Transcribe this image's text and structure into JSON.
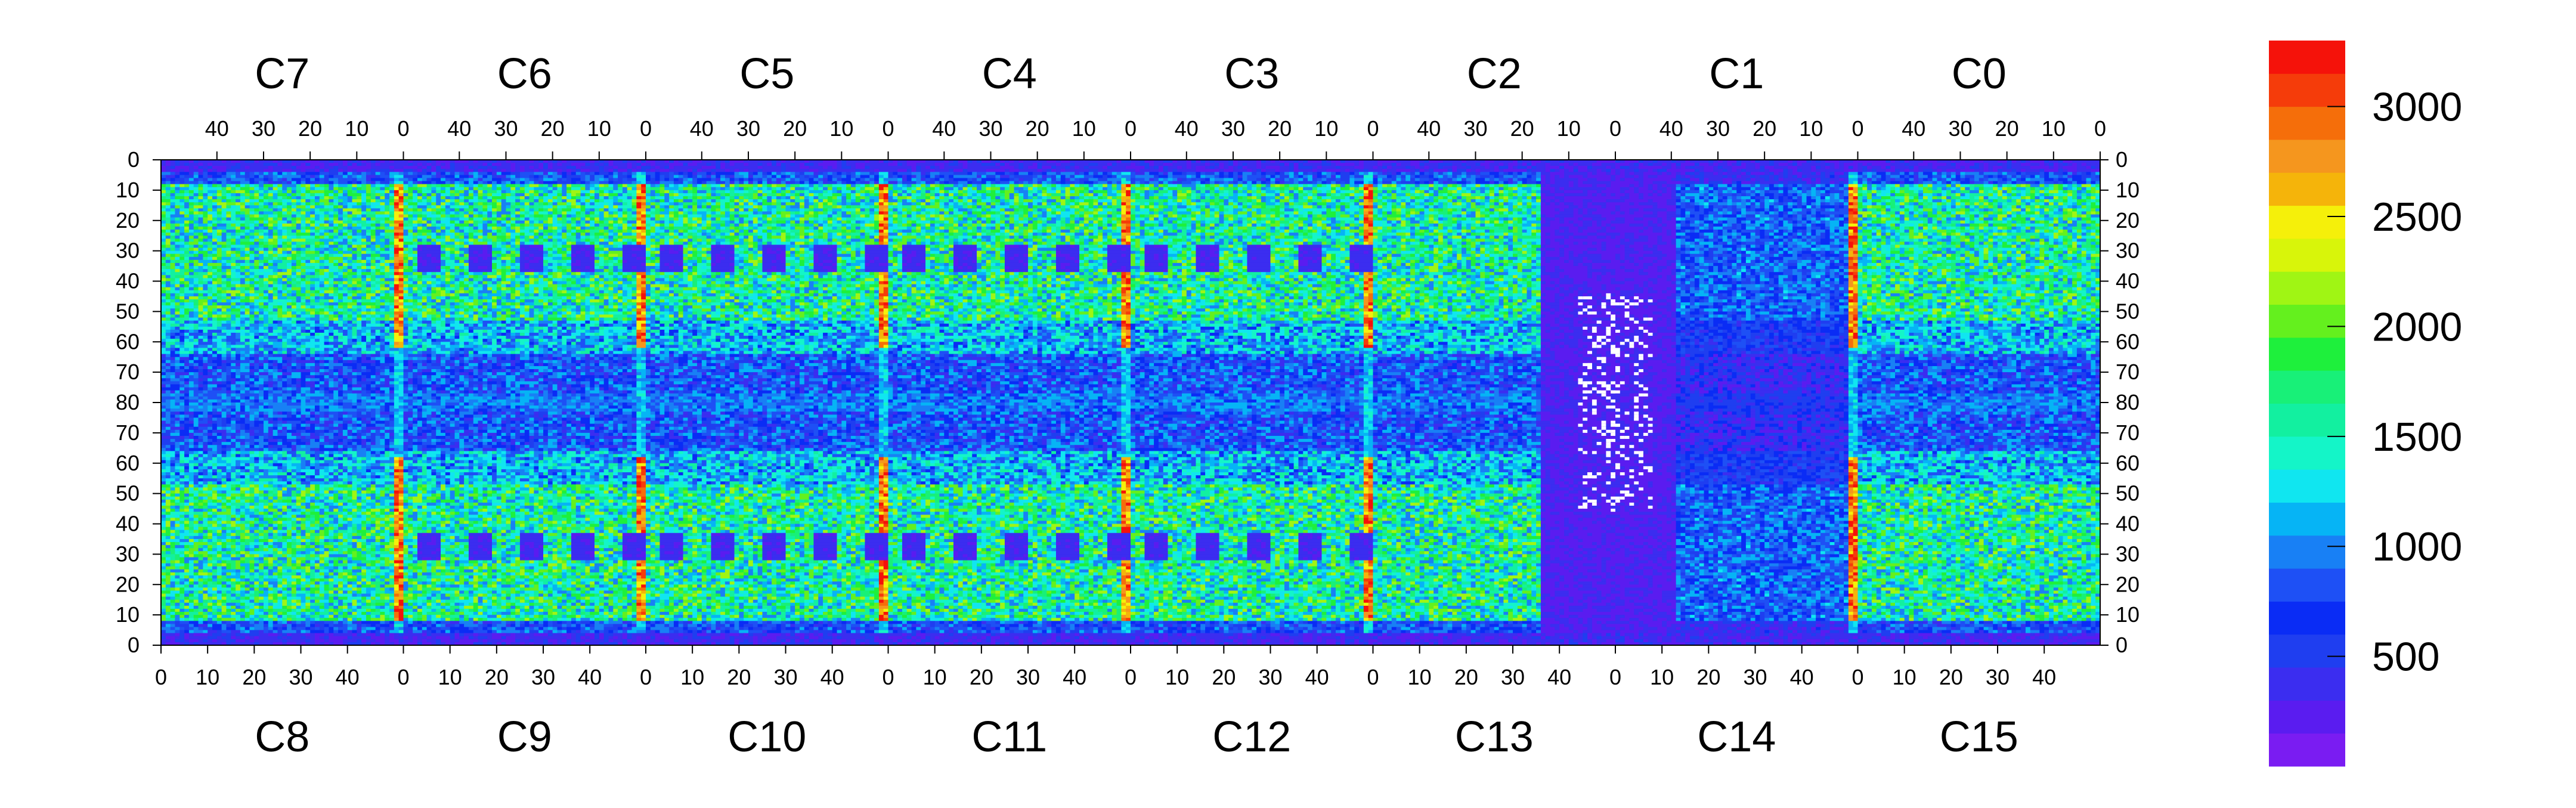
{
  "chart_data": {
    "type": "heatmap",
    "title": "",
    "xlabel": "",
    "ylabel": "",
    "top_chips": [
      "C7",
      "C6",
      "C5",
      "C4",
      "C3",
      "C2",
      "C1",
      "C0"
    ],
    "bottom_chips": [
      "C8",
      "C9",
      "C10",
      "C11",
      "C12",
      "C13",
      "C14",
      "C15"
    ],
    "chip_columns": 52,
    "top_x_ticks": [
      "40",
      "30",
      "20",
      "10",
      "0"
    ],
    "bottom_x_ticks": [
      "0",
      "10",
      "20",
      "30",
      "40"
    ],
    "y_ticks": [
      "0",
      "10",
      "20",
      "30",
      "40",
      "50",
      "60",
      "70",
      "80",
      "70",
      "60",
      "50",
      "40",
      "30",
      "20",
      "10",
      "0"
    ],
    "zlim": [
      0,
      3300
    ],
    "colorbar_ticks": [
      {
        "value": 500,
        "label": "500"
      },
      {
        "value": 1000,
        "label": "1000"
      },
      {
        "value": 1500,
        "label": "1500"
      },
      {
        "value": 2000,
        "label": "2000"
      },
      {
        "value": 2500,
        "label": "2500"
      },
      {
        "value": 3000,
        "label": "3000"
      }
    ],
    "palette": [
      "#7a1cf2",
      "#5a1cf0",
      "#3b2df0",
      "#1f3ef0",
      "#0a2cf5",
      "#1e50f5",
      "#1880f5",
      "#06b4f5",
      "#10e6f0",
      "#14f5c8",
      "#12f0a0",
      "#18f078",
      "#1ef03c",
      "#64f01e",
      "#a0f514",
      "#d8f50a",
      "#f5f00a",
      "#f5b40a",
      "#f5961e",
      "#f56e0a",
      "#f53c0a",
      "#f5120a"
    ],
    "regions": {
      "top_band_rows": [
        10,
        62
      ],
      "hot_stripe_columns_at_chip_edges": true,
      "middle_cold_band_rows": [
        66,
        96
      ],
      "c13_c14_cold_zone": true,
      "c13_dead_pixels": true
    }
  }
}
